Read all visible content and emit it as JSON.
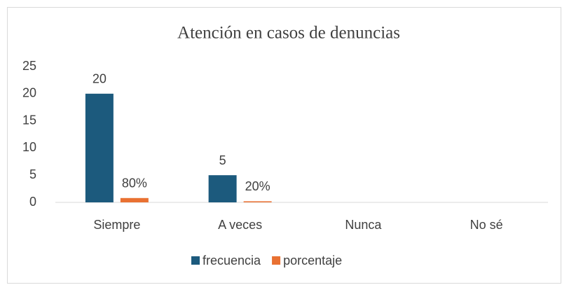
{
  "chart_data": {
    "type": "bar",
    "title": "Atención en casos de denuncias",
    "categories": [
      "Siempre",
      "A veces",
      "Nunca",
      "No sé"
    ],
    "series": [
      {
        "name": "frecuencia",
        "color": "#1c5a7d",
        "values": [
          20,
          5,
          0,
          0
        ],
        "value_labels": [
          "20",
          "5",
          null,
          null
        ]
      },
      {
        "name": "porcentaje",
        "color": "#e97132",
        "values": [
          0.8,
          0.2,
          0,
          0
        ],
        "value_labels": [
          "80%",
          "20%",
          null,
          null
        ]
      }
    ],
    "ylim": [
      0,
      25
    ],
    "yticks": [
      0,
      5,
      10,
      15,
      20,
      25
    ],
    "grid": false,
    "legend": "bottom"
  }
}
